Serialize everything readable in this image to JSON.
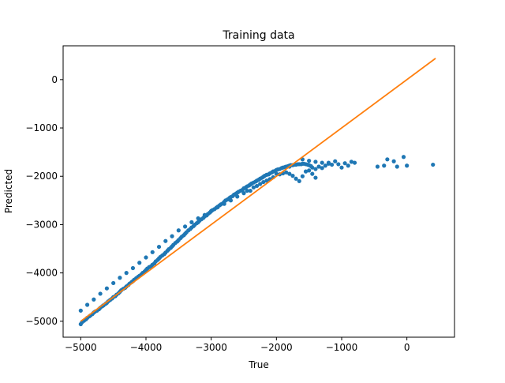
{
  "chart_data": {
    "type": "scatter",
    "title": "Training data",
    "xlabel": "True",
    "ylabel": "Predicted",
    "xlim": [
      -5270,
      730
    ],
    "ylim": [
      -5330,
      700
    ],
    "xticks": [
      -5000,
      -4000,
      -3000,
      -2000,
      -1000,
      0
    ],
    "yticks": [
      -5000,
      -4000,
      -3000,
      -2000,
      -1000,
      0
    ],
    "xtick_labels": [
      "−5000",
      "−4000",
      "−3000",
      "−2000",
      "−1000",
      "0"
    ],
    "ytick_labels": [
      "−5000",
      "−4000",
      "−3000",
      "−2000",
      "−1000",
      "0"
    ],
    "grid": false,
    "legend": "none",
    "colors": {
      "points": "#1f77b4",
      "line": "#ff7f0e"
    },
    "series": [
      {
        "type": "scatter",
        "x": [
          -5000,
          -4980,
          -4950,
          -4920,
          -4900,
          -4870,
          -4850,
          -4820,
          -4800,
          -4780,
          -4750,
          -4720,
          -4700,
          -4670,
          -4650,
          -4620,
          -4600,
          -4580,
          -4550,
          -4520,
          -4500,
          -4470,
          -4450,
          -4420,
          -4400,
          -4380,
          -4350,
          -4320,
          -4300,
          -4270,
          -4250,
          -4220,
          -4200,
          -4180,
          -4150,
          -4120,
          -4100,
          -4070,
          -4050,
          -4020,
          -4000,
          -3980,
          -3950,
          -3920,
          -3900,
          -3870,
          -3850,
          -3820,
          -3800,
          -3780,
          -3750,
          -3720,
          -3700,
          -3670,
          -3650,
          -3620,
          -3600,
          -3580,
          -3550,
          -3520,
          -3500,
          -3470,
          -3450,
          -3420,
          -3400,
          -3380,
          -3350,
          -3320,
          -3300,
          -3270,
          -3250,
          -3220,
          -3200,
          -3180,
          -3150,
          -3120,
          -3100,
          -3070,
          -3050,
          -3020,
          -3000,
          -2980,
          -2950,
          -2920,
          -2900,
          -2870,
          -2850,
          -2820,
          -2800,
          -2780,
          -2750,
          -2720,
          -2700,
          -2670,
          -2650,
          -2620,
          -2600,
          -2580,
          -2550,
          -2520,
          -2500,
          -2470,
          -2450,
          -2420,
          -2400,
          -2380,
          -2350,
          -2320,
          -2300,
          -2270,
          -2250,
          -2220,
          -2200,
          -2180,
          -2150,
          -2120,
          -2100,
          -2070,
          -2050,
          -2020,
          -2000,
          -1980,
          -1950,
          -1920,
          -1900,
          -1870,
          -1850,
          -1820,
          -1800,
          -1780,
          -1750,
          -1720,
          -1700,
          -1670,
          -1650,
          -1620,
          -1600,
          -1580,
          -1550,
          -1520,
          -1500,
          -1470,
          -1450,
          -1400,
          -1350,
          -1300,
          -1250,
          -1200,
          -1150,
          -1100,
          -1050,
          -1000,
          -950,
          -900,
          -850,
          -800,
          -2500,
          -2450,
          -2350,
          -2300,
          -2250,
          -2150,
          -2100,
          -2050,
          -1950,
          -1900,
          -1850,
          -1800,
          -1750,
          -1700,
          -1650,
          -1600,
          -1550,
          -1500,
          -1450,
          -1400,
          -2600,
          -2700,
          -2800,
          -2900,
          -3000,
          -3100,
          -3200,
          -3300,
          -3400,
          -3500,
          -3600,
          -3700,
          -3800,
          -3900,
          -4000,
          -4100,
          -4200,
          -4300,
          -4400,
          -4500,
          -4600,
          -4700,
          -4800,
          -4900,
          -5000,
          -2400,
          -2200,
          -2000,
          -1800,
          -1600,
          -1500,
          -1400,
          -1300,
          -1200,
          -450,
          -350,
          -300,
          -200,
          -150,
          -50,
          0,
          400
        ],
        "y": [
          -5060,
          -5020,
          -4990,
          -4960,
          -4930,
          -4900,
          -4880,
          -4850,
          -4820,
          -4800,
          -4780,
          -4750,
          -4720,
          -4690,
          -4670,
          -4640,
          -4620,
          -4590,
          -4560,
          -4530,
          -4500,
          -4480,
          -4450,
          -4420,
          -4390,
          -4360,
          -4330,
          -4310,
          -4280,
          -4250,
          -4220,
          -4190,
          -4170,
          -4140,
          -4110,
          -4080,
          -4060,
          -4030,
          -4000,
          -3970,
          -3940,
          -3910,
          -3880,
          -3860,
          -3830,
          -3800,
          -3760,
          -3730,
          -3700,
          -3670,
          -3640,
          -3610,
          -3580,
          -3540,
          -3510,
          -3480,
          -3450,
          -3420,
          -3380,
          -3350,
          -3320,
          -3280,
          -3250,
          -3220,
          -3190,
          -3160,
          -3120,
          -3090,
          -3060,
          -3030,
          -3000,
          -2970,
          -2950,
          -2920,
          -2890,
          -2860,
          -2830,
          -2810,
          -2780,
          -2750,
          -2720,
          -2700,
          -2680,
          -2650,
          -2630,
          -2600,
          -2580,
          -2560,
          -2530,
          -2500,
          -2480,
          -2450,
          -2430,
          -2410,
          -2380,
          -2360,
          -2340,
          -2320,
          -2300,
          -2280,
          -2250,
          -2230,
          -2210,
          -2190,
          -2170,
          -2150,
          -2130,
          -2110,
          -2090,
          -2070,
          -2050,
          -2030,
          -2010,
          -1990,
          -1970,
          -1960,
          -1940,
          -1920,
          -1900,
          -1890,
          -1870,
          -1860,
          -1850,
          -1830,
          -1820,
          -1810,
          -1800,
          -1790,
          -1780,
          -1770,
          -1770,
          -1760,
          -1760,
          -1750,
          -1750,
          -1750,
          -1740,
          -1740,
          -1750,
          -1760,
          -1770,
          -1790,
          -1820,
          -1850,
          -1800,
          -1830,
          -1780,
          -1720,
          -1760,
          -1690,
          -1750,
          -1820,
          -1730,
          -1780,
          -1700,
          -1720,
          -2350,
          -2300,
          -2230,
          -2200,
          -2160,
          -2090,
          -2060,
          -2020,
          -1960,
          -1940,
          -1920,
          -1950,
          -1990,
          -2050,
          -2100,
          -2000,
          -1900,
          -1880,
          -1950,
          -2030,
          -2420,
          -2500,
          -2570,
          -2640,
          -2720,
          -2800,
          -2870,
          -2950,
          -3040,
          -3120,
          -3240,
          -3340,
          -3460,
          -3570,
          -3680,
          -3790,
          -3900,
          -4000,
          -4100,
          -4210,
          -4320,
          -4430,
          -4550,
          -4660,
          -4780,
          -2300,
          -2120,
          -1950,
          -1800,
          -1650,
          -1680,
          -1700,
          -1720,
          -1740,
          -1800,
          -1780,
          -1650,
          -1690,
          -1800,
          -1600,
          -1780,
          -1760
        ],
        "name": ""
      },
      {
        "type": "line",
        "x": [
          -5000,
          440
        ],
        "y": [
          -5000,
          440
        ],
        "name": ""
      }
    ]
  }
}
